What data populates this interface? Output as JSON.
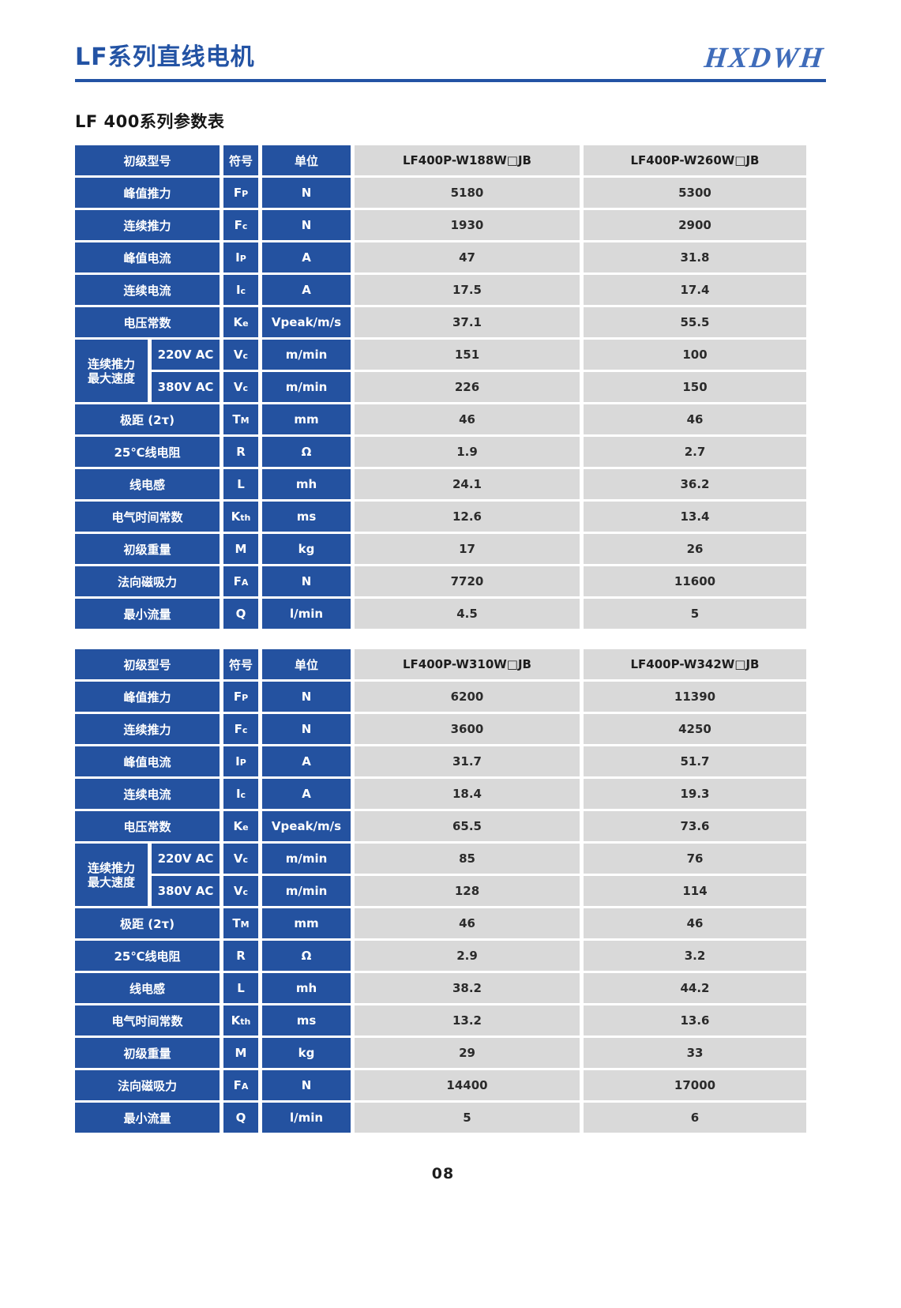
{
  "page": {
    "header_title": "LF系列直线电机",
    "logo": "HXDWH",
    "section_title": "LF 400系列参数表",
    "page_number": "08"
  },
  "colors": {
    "table_blue": "#2452a0",
    "table_gray": "#d9d9d9",
    "title_blue": "#2353a4",
    "logo_blue": "#3f6cba"
  },
  "labels": {
    "model_col": "初级型号",
    "symbol_col": "符号",
    "unit_col": "单位"
  },
  "speed_group": {
    "label_line1": "连续推力",
    "label_line2": "最大速度"
  },
  "tables": [
    {
      "models": [
        "LF400P-W188W□JB",
        "LF400P-W260W□JB"
      ],
      "rows": [
        {
          "label": "峰值推力",
          "sym": "F",
          "sub": "P",
          "unit": "N",
          "v1": "5180",
          "v2": "5300"
        },
        {
          "label": "连续推力",
          "sym": "F",
          "sub": "c",
          "unit": "N",
          "v1": "1930",
          "v2": "2900"
        },
        {
          "label": "峰值电流",
          "sym": "I",
          "sub": "P",
          "unit": "A",
          "v1": "47",
          "v2": "31.8"
        },
        {
          "label": "连续电流",
          "sym": "I",
          "sub": "c",
          "unit": "A",
          "v1": "17.5",
          "v2": "17.4"
        },
        {
          "label": "电压常数",
          "sym": "K",
          "sub": "e",
          "unit": "Vpeak/m/s",
          "v1": "37.1",
          "v2": "55.5"
        },
        {
          "kind": "speed1",
          "label": "220V AC",
          "sym": "V",
          "sub": "c",
          "unit": "m/min",
          "v1": "151",
          "v2": "100"
        },
        {
          "kind": "speed2",
          "label": "380V AC",
          "sym": "V",
          "sub": "c",
          "unit": "m/min",
          "v1": "226",
          "v2": "150"
        },
        {
          "label": "极距 (2τ)",
          "sym": "T",
          "sub": "M",
          "unit": "mm",
          "v1": "46",
          "v2": "46"
        },
        {
          "label": "25℃线电阻",
          "sym": "R",
          "sub": "",
          "unit": "Ω",
          "v1": "1.9",
          "v2": "2.7"
        },
        {
          "label": "线电感",
          "sym": "L",
          "sub": "",
          "unit": "mh",
          "v1": "24.1",
          "v2": "36.2"
        },
        {
          "label": "电气时间常数",
          "sym": "K",
          "sub": "th",
          "unit": "ms",
          "v1": "12.6",
          "v2": "13.4"
        },
        {
          "label": "初级重量",
          "sym": "M",
          "sub": "",
          "unit": "kg",
          "v1": "17",
          "v2": "26"
        },
        {
          "label": "法向磁吸力",
          "sym": "F",
          "sub": "A",
          "unit": "N",
          "v1": "7720",
          "v2": "11600"
        },
        {
          "label": "最小流量",
          "sym": "Q",
          "sub": "",
          "unit": "l/min",
          "v1": "4.5",
          "v2": "5"
        }
      ]
    },
    {
      "models": [
        "LF400P-W310W□JB",
        "LF400P-W342W□JB"
      ],
      "rows": [
        {
          "label": "峰值推力",
          "sym": "F",
          "sub": "P",
          "unit": "N",
          "v1": "6200",
          "v2": "11390"
        },
        {
          "label": "连续推力",
          "sym": "F",
          "sub": "c",
          "unit": "N",
          "v1": "3600",
          "v2": "4250"
        },
        {
          "label": "峰值电流",
          "sym": "I",
          "sub": "P",
          "unit": "A",
          "v1": "31.7",
          "v2": "51.7"
        },
        {
          "label": "连续电流",
          "sym": "I",
          "sub": "c",
          "unit": "A",
          "v1": "18.4",
          "v2": "19.3"
        },
        {
          "label": "电压常数",
          "sym": "K",
          "sub": "e",
          "unit": "Vpeak/m/s",
          "v1": "65.5",
          "v2": "73.6"
        },
        {
          "kind": "speed1",
          "label": "220V AC",
          "sym": "V",
          "sub": "c",
          "unit": "m/min",
          "v1": "85",
          "v2": "76"
        },
        {
          "kind": "speed2",
          "label": "380V AC",
          "sym": "V",
          "sub": "c",
          "unit": "m/min",
          "v1": "128",
          "v2": "114"
        },
        {
          "label": "极距 (2τ)",
          "sym": "T",
          "sub": "M",
          "unit": "mm",
          "v1": "46",
          "v2": "46"
        },
        {
          "label": "25℃线电阻",
          "sym": "R",
          "sub": "",
          "unit": "Ω",
          "v1": "2.9",
          "v2": "3.2"
        },
        {
          "label": "线电感",
          "sym": "L",
          "sub": "",
          "unit": "mh",
          "v1": "38.2",
          "v2": "44.2"
        },
        {
          "label": "电气时间常数",
          "sym": "K",
          "sub": "th",
          "unit": "ms",
          "v1": "13.2",
          "v2": "13.6"
        },
        {
          "label": "初级重量",
          "sym": "M",
          "sub": "",
          "unit": "kg",
          "v1": "29",
          "v2": "33"
        },
        {
          "label": "法向磁吸力",
          "sym": "F",
          "sub": "A",
          "unit": "N",
          "v1": "14400",
          "v2": "17000"
        },
        {
          "label": "最小流量",
          "sym": "Q",
          "sub": "",
          "unit": "l/min",
          "v1": "5",
          "v2": "6"
        }
      ]
    }
  ]
}
